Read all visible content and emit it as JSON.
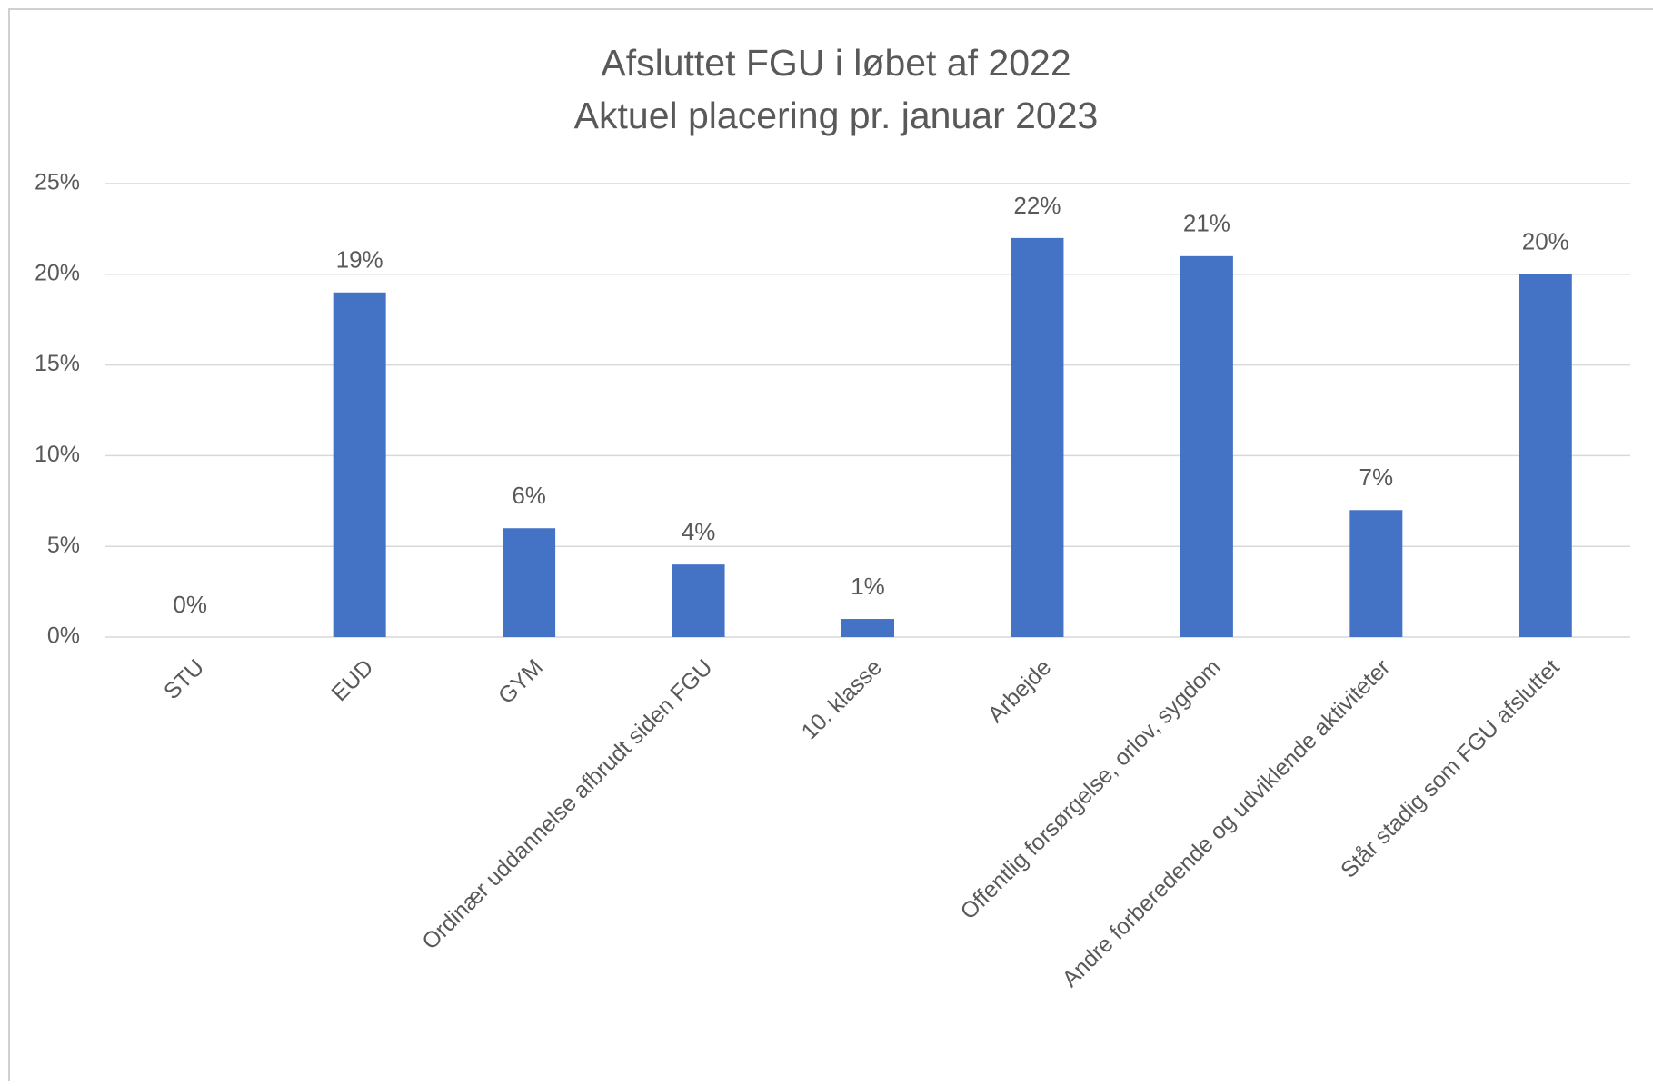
{
  "chart_data": {
    "type": "bar",
    "title": [
      "Afsluttet FGU i løbet af 2022",
      "Aktuel placering pr. januar 2023"
    ],
    "categories": [
      "STU",
      "EUD",
      "GYM",
      "Ordinær uddannelse afbrudt siden FGU",
      "10. klasse",
      "Arbejde",
      "Offentlig forsørgelse, orlov, sygdom",
      "Andre forberedende og udviklende aktiviteter",
      "Står stadig som FGU afsluttet"
    ],
    "values": [
      0,
      19,
      6,
      4,
      1,
      22,
      21,
      7,
      20
    ],
    "value_labels": [
      "0%",
      "19%",
      "6%",
      "4%",
      "1%",
      "22%",
      "21%",
      "7%",
      "20%"
    ],
    "color": "#4472c4",
    "ylim": [
      0,
      25
    ],
    "yticks": [
      {
        "value": 0,
        "label": "0%"
      },
      {
        "value": 5,
        "label": "5%"
      },
      {
        "value": 10,
        "label": "10%"
      },
      {
        "value": 15,
        "label": "15%"
      },
      {
        "value": 20,
        "label": "20%"
      },
      {
        "value": 25,
        "label": "25%"
      }
    ],
    "grid": true
  }
}
